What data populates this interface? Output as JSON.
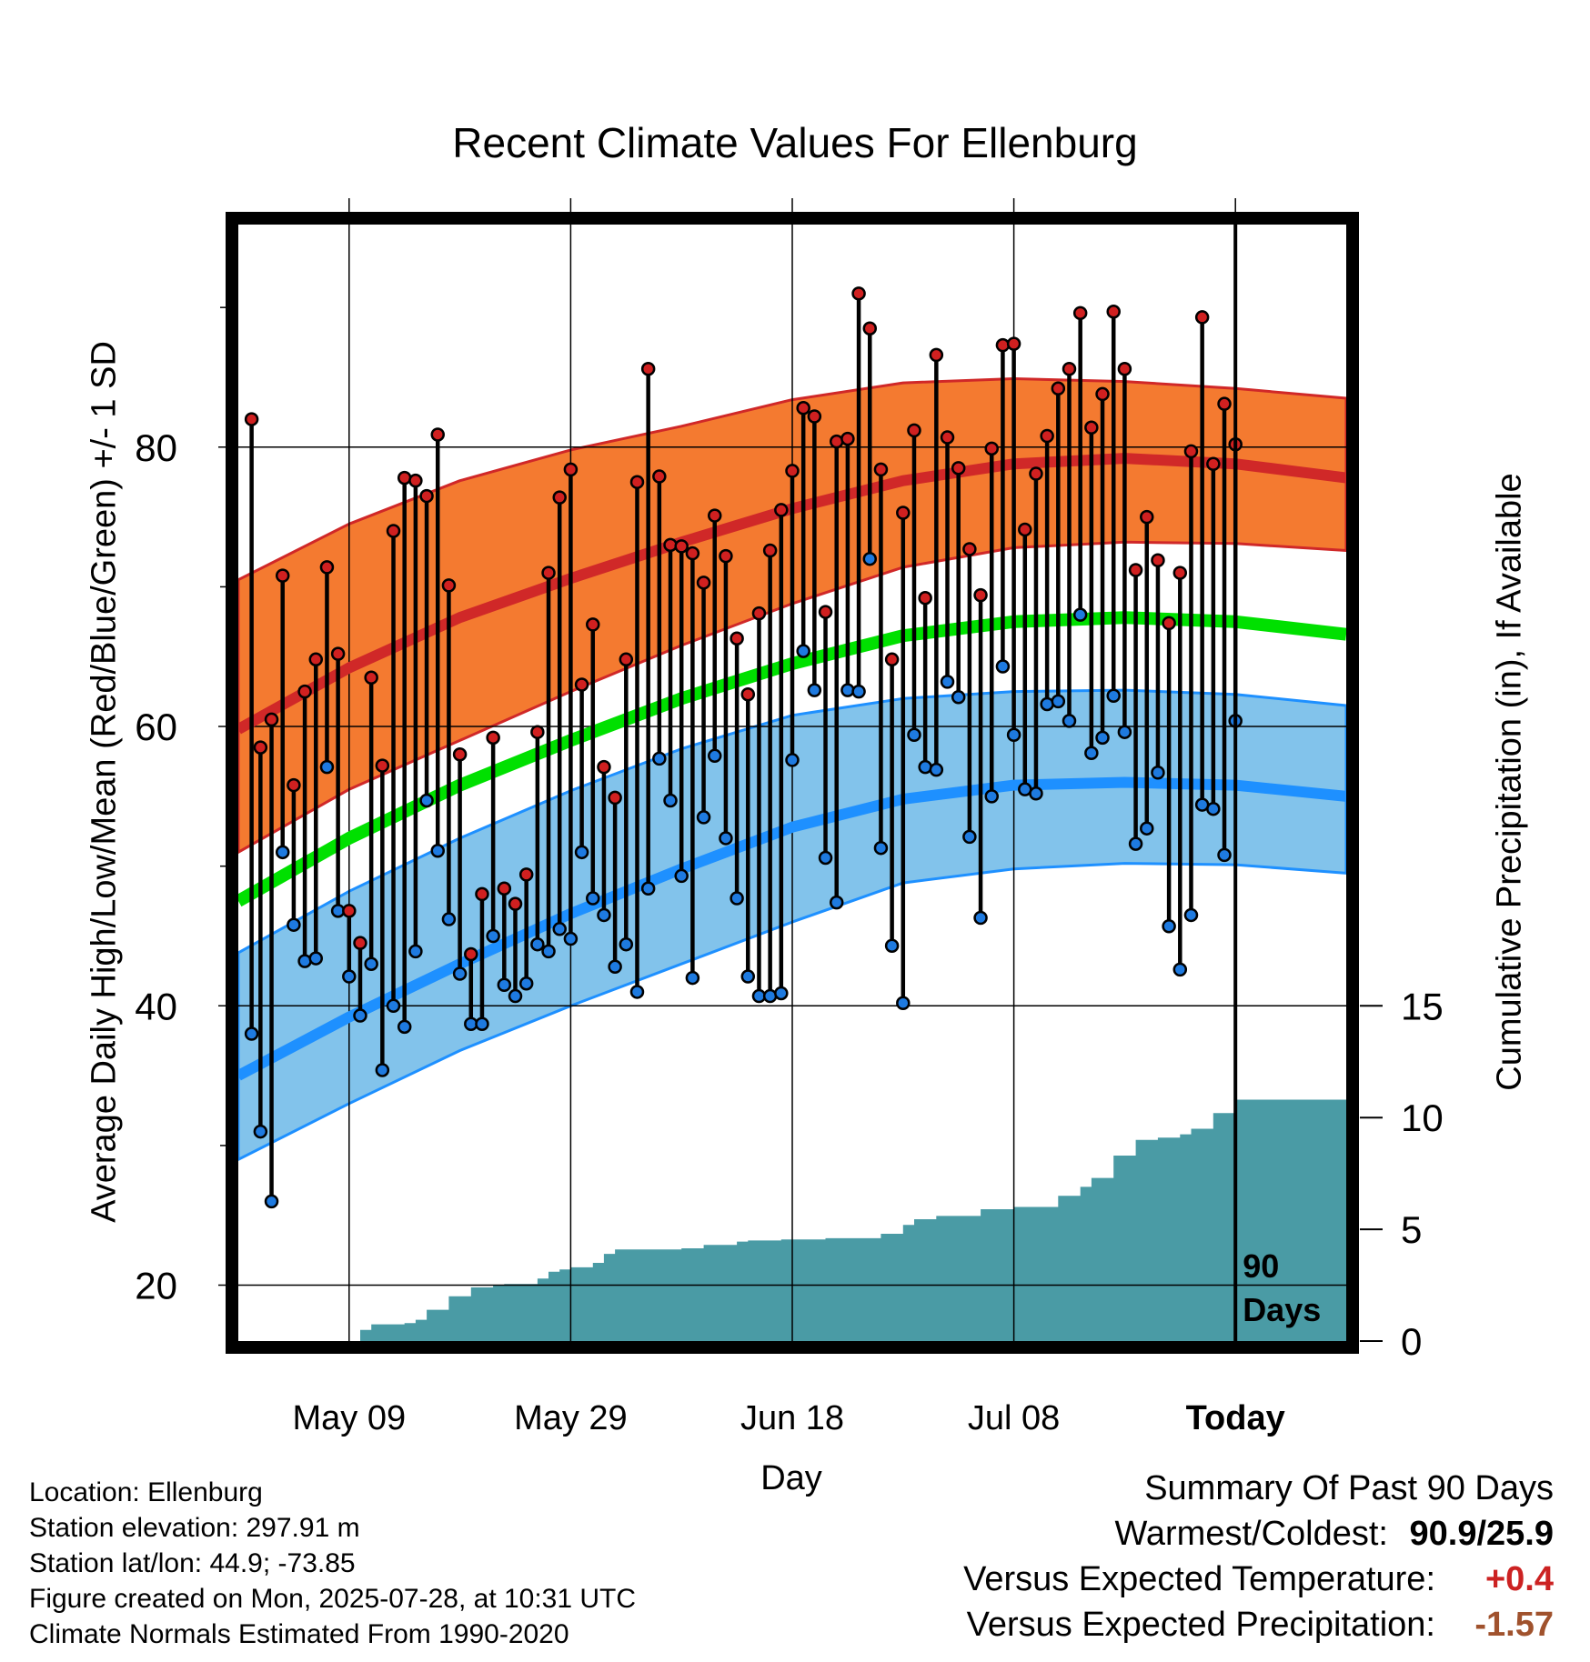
{
  "title": "Recent Climate Values For Ellenburg",
  "chart_data": {
    "type": "line",
    "title": "Recent Climate Values For Ellenburg",
    "xlabel": "Day",
    "ylabel": "Average Daily High/Low/Mean (Red/Blue/Green) +/- 1 SD",
    "ylabel_right": "Cumulative Precipitation (in), If Available",
    "x_ticks": [
      "May 09",
      "May 29",
      "Jun 18",
      "Jul 08",
      "Today"
    ],
    "y_ticks": [
      20,
      40,
      60,
      80
    ],
    "y_right_ticks": [
      0,
      5,
      10,
      15
    ],
    "xlim_days": [
      -90,
      10
    ],
    "ylim": [
      16,
      96
    ],
    "y_right_lim": [
      0,
      50
    ],
    "grid": true,
    "annotation": [
      "90",
      "Days"
    ],
    "normals": {
      "days": [
        -90,
        -80,
        -70,
        -60,
        -50,
        -40,
        -30,
        -20,
        -10,
        0,
        10
      ],
      "high_mean": [
        59.8,
        64.2,
        67.8,
        70.6,
        73.2,
        75.6,
        77.6,
        78.8,
        79.2,
        78.8,
        77.8
      ],
      "high_upper": [
        70.5,
        74.5,
        77.6,
        79.8,
        81.5,
        83.4,
        84.6,
        84.9,
        84.7,
        84.2,
        83.5
      ],
      "high_lower": [
        51.0,
        55.5,
        59.0,
        62.5,
        65.8,
        68.8,
        71.4,
        72.8,
        73.2,
        73.1,
        72.6
      ],
      "mean_mean": [
        47.5,
        52.0,
        55.8,
        59.0,
        62.0,
        64.5,
        66.5,
        67.5,
        67.8,
        67.5,
        66.6
      ],
      "low_mean": [
        35.0,
        39.2,
        43.0,
        46.6,
        49.8,
        52.8,
        54.8,
        55.8,
        56.0,
        55.8,
        55.0
      ],
      "low_upper": [
        43.8,
        48.2,
        52.0,
        55.4,
        58.4,
        60.8,
        62.0,
        62.5,
        62.6,
        62.3,
        61.5
      ],
      "low_lower": [
        29.0,
        33.0,
        36.8,
        40.0,
        43.0,
        46.0,
        48.8,
        49.8,
        50.2,
        50.1,
        49.5
      ]
    },
    "daily_high": [
      82.0,
      58.5,
      60.5,
      70.8,
      55.8,
      62.5,
      64.8,
      71.4,
      65.2,
      46.8,
      44.5,
      63.5,
      57.2,
      74.0,
      77.8,
      77.6,
      76.5,
      80.9,
      70.1,
      58.0,
      43.7,
      48.0,
      59.2,
      48.4,
      47.3,
      49.4,
      59.6,
      71.0,
      76.4,
      78.4,
      63.0,
      67.3,
      57.1,
      54.9,
      64.8,
      77.5,
      85.6,
      77.9,
      73.0,
      72.9,
      72.4,
      70.3,
      75.1,
      72.2,
      66.3,
      62.3,
      68.1,
      72.6,
      75.5,
      78.3,
      82.8,
      82.2,
      68.2,
      80.4,
      80.6,
      91.0,
      88.5,
      78.4,
      64.8,
      75.3,
      81.2,
      69.2,
      86.6,
      80.7,
      78.5,
      72.7,
      69.4,
      79.9,
      87.3,
      87.4,
      74.1,
      78.1,
      80.8,
      84.2,
      85.6,
      89.6,
      81.4,
      83.8,
      89.7,
      85.6,
      71.2,
      75.0,
      71.9,
      67.4,
      71.0,
      79.7,
      89.3,
      78.8,
      83.1,
      80.2
    ],
    "daily_low": [
      38.0,
      31.0,
      26.0,
      51.0,
      45.8,
      43.2,
      43.4,
      57.1,
      46.8,
      42.1,
      39.3,
      43.0,
      35.4,
      40.0,
      38.5,
      43.9,
      54.7,
      51.1,
      46.2,
      42.3,
      38.7,
      38.7,
      45.0,
      41.5,
      40.7,
      41.6,
      44.4,
      43.9,
      45.5,
      44.8,
      51.0,
      47.7,
      46.5,
      42.8,
      44.4,
      41.0,
      48.4,
      57.7,
      54.7,
      49.3,
      42.0,
      53.5,
      57.9,
      52.0,
      47.7,
      42.1,
      40.7,
      40.7,
      40.9,
      57.6,
      65.4,
      62.6,
      50.6,
      47.4,
      62.6,
      62.5,
      72.0,
      51.3,
      44.3,
      40.2,
      59.4,
      57.1,
      56.9,
      63.2,
      62.1,
      52.1,
      46.3,
      55.0,
      64.3,
      59.4,
      55.5,
      55.2,
      61.6,
      61.8,
      60.4,
      68.0,
      58.1,
      59.2,
      62.2,
      59.6,
      51.6,
      52.7,
      56.7,
      45.7,
      42.6,
      46.5,
      54.4,
      54.1,
      50.8,
      60.4
    ],
    "cumulative_precip_days": [
      -90,
      -80,
      -79,
      -78,
      -75,
      -74,
      -73,
      -71,
      -69,
      -67,
      -66,
      -63,
      -62,
      -61,
      -60,
      -58,
      -57,
      -56,
      -53,
      -50,
      -48,
      -45,
      -44,
      -41,
      -37,
      -32,
      -30,
      -29,
      -27,
      -23,
      -20,
      -16,
      -14,
      -13,
      -11,
      -9,
      -7,
      -5,
      -4,
      -2,
      0,
      10
    ],
    "cumulative_precip_in": [
      0,
      0,
      0.5,
      0.75,
      0.8,
      0.95,
      1.4,
      2.0,
      2.4,
      2.5,
      2.55,
      2.8,
      3.1,
      3.2,
      3.3,
      3.5,
      3.9,
      4.1,
      4.1,
      4.15,
      4.3,
      4.45,
      4.5,
      4.55,
      4.6,
      4.8,
      5.2,
      5.45,
      5.6,
      5.9,
      6.0,
      6.5,
      6.9,
      7.3,
      8.3,
      9.0,
      9.1,
      9.25,
      9.5,
      10.2,
      10.8,
      10.8
    ]
  },
  "info": {
    "location": "Location: Ellenburg",
    "elevation": "Station elevation: 297.91 m",
    "latlon": "Station lat/lon: 44.9; -73.85",
    "created": "Figure created on Mon, 2025-07-28, at 10:31 UTC",
    "normals": "Climate Normals Estimated From 1990-2020"
  },
  "summary": {
    "heading": "Summary Of Past 90 Days",
    "warm_cold_label": "Warmest/Coldest:",
    "warm_cold_value": "90.9/25.9",
    "temp_label": "Versus Expected Temperature:",
    "temp_value": "+0.4",
    "precip_label": "Versus Expected Precipitation:",
    "precip_value": "-1.57"
  },
  "colors": {
    "high_band": "#f47a30",
    "high_line": "#d02828",
    "mean_line": "#00e000",
    "low_band": "#82c3eb",
    "low_line": "#1e90ff",
    "precip_fill": "#4a9ba5",
    "high_dot": "#d02020",
    "low_dot": "#1e7ae0"
  }
}
